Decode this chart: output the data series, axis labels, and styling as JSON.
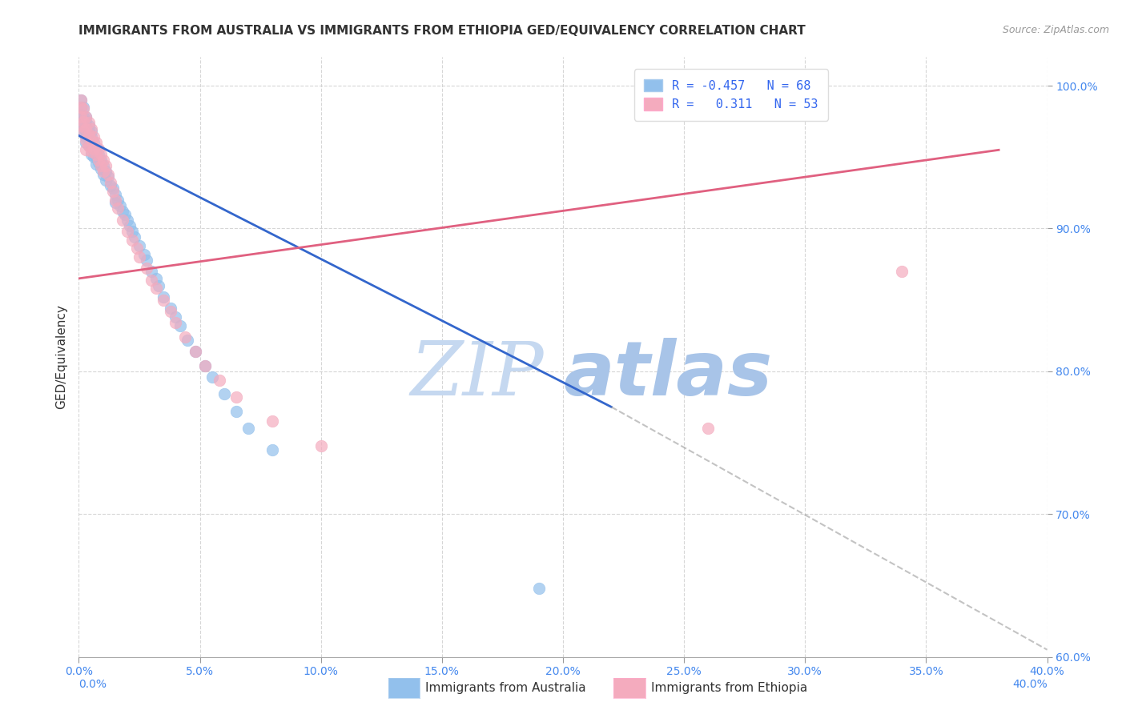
{
  "title": "IMMIGRANTS FROM AUSTRALIA VS IMMIGRANTS FROM ETHIOPIA GED/EQUIVALENCY CORRELATION CHART",
  "source": "Source: ZipAtlas.com",
  "ylabel": "GED/Equivalency",
  "xlim": [
    0.0,
    0.4
  ],
  "ylim": [
    0.6,
    1.02
  ],
  "xticks": [
    0.0,
    0.05,
    0.1,
    0.15,
    0.2,
    0.25,
    0.3,
    0.35,
    0.4
  ],
  "yticks": [
    0.6,
    0.7,
    0.8,
    0.9,
    1.0
  ],
  "ytick_labels": [
    "60.0%",
    "70.0%",
    "80.0%",
    "90.0%",
    "100.0%"
  ],
  "xtick_labels": [
    "0.0%",
    "5.0%",
    "10.0%",
    "15.0%",
    "20.0%",
    "25.0%",
    "30.0%",
    "35.0%",
    "40.0%"
  ],
  "r_australia": -0.457,
  "n_australia": 68,
  "r_ethiopia": 0.311,
  "n_ethiopia": 53,
  "color_australia": "#92C0EC",
  "color_ethiopia": "#F4ABBE",
  "line_color_australia": "#3366CC",
  "line_color_ethiopia": "#E06080",
  "legend_label_australia": "Immigrants from Australia",
  "legend_label_ethiopia": "Immigrants from Ethiopia",
  "aus_line_x": [
    0.0,
    0.22
  ],
  "aus_line_y": [
    0.965,
    0.775
  ],
  "eth_line_x": [
    0.0,
    0.38
  ],
  "eth_line_y": [
    0.865,
    0.955
  ],
  "dash_line_x": [
    0.22,
    0.4
  ],
  "dash_line_y": [
    0.775,
    0.605
  ],
  "scatter_australia_x": [
    0.001,
    0.001,
    0.001,
    0.001,
    0.002,
    0.002,
    0.002,
    0.002,
    0.003,
    0.003,
    0.003,
    0.003,
    0.003,
    0.003,
    0.004,
    0.004,
    0.004,
    0.004,
    0.005,
    0.005,
    0.005,
    0.005,
    0.006,
    0.006,
    0.006,
    0.007,
    0.007,
    0.007,
    0.008,
    0.008,
    0.009,
    0.009,
    0.01,
    0.01,
    0.011,
    0.011,
    0.012,
    0.013,
    0.014,
    0.015,
    0.015,
    0.016,
    0.017,
    0.018,
    0.019,
    0.02,
    0.021,
    0.022,
    0.023,
    0.025,
    0.027,
    0.028,
    0.03,
    0.032,
    0.033,
    0.035,
    0.038,
    0.04,
    0.042,
    0.045,
    0.048,
    0.052,
    0.055,
    0.06,
    0.065,
    0.07,
    0.08,
    0.19
  ],
  "scatter_australia_y": [
    0.99,
    0.985,
    0.98,
    0.975,
    0.985,
    0.978,
    0.972,
    0.968,
    0.978,
    0.975,
    0.972,
    0.968,
    0.964,
    0.96,
    0.972,
    0.968,
    0.964,
    0.958,
    0.968,
    0.964,
    0.958,
    0.952,
    0.96,
    0.955,
    0.95,
    0.956,
    0.95,
    0.945,
    0.952,
    0.946,
    0.948,
    0.942,
    0.944,
    0.938,
    0.94,
    0.934,
    0.936,
    0.93,
    0.928,
    0.924,
    0.918,
    0.92,
    0.916,
    0.912,
    0.91,
    0.906,
    0.902,
    0.898,
    0.894,
    0.888,
    0.882,
    0.878,
    0.87,
    0.865,
    0.86,
    0.852,
    0.844,
    0.838,
    0.832,
    0.822,
    0.814,
    0.804,
    0.796,
    0.784,
    0.772,
    0.76,
    0.745,
    0.648
  ],
  "scatter_ethiopia_x": [
    0.001,
    0.001,
    0.001,
    0.001,
    0.002,
    0.002,
    0.002,
    0.003,
    0.003,
    0.003,
    0.003,
    0.004,
    0.004,
    0.004,
    0.005,
    0.005,
    0.005,
    0.006,
    0.006,
    0.007,
    0.007,
    0.008,
    0.008,
    0.009,
    0.009,
    0.01,
    0.01,
    0.011,
    0.012,
    0.013,
    0.014,
    0.015,
    0.016,
    0.018,
    0.02,
    0.022,
    0.024,
    0.025,
    0.028,
    0.03,
    0.032,
    0.035,
    0.038,
    0.04,
    0.044,
    0.048,
    0.052,
    0.058,
    0.065,
    0.08,
    0.1,
    0.26,
    0.34
  ],
  "scatter_ethiopia_y": [
    0.99,
    0.985,
    0.978,
    0.972,
    0.984,
    0.975,
    0.968,
    0.978,
    0.97,
    0.962,
    0.955,
    0.974,
    0.966,
    0.958,
    0.97,
    0.962,
    0.954,
    0.964,
    0.956,
    0.96,
    0.952,
    0.956,
    0.948,
    0.952,
    0.944,
    0.948,
    0.94,
    0.944,
    0.938,
    0.932,
    0.926,
    0.92,
    0.914,
    0.906,
    0.898,
    0.892,
    0.886,
    0.88,
    0.872,
    0.864,
    0.858,
    0.85,
    0.842,
    0.834,
    0.824,
    0.814,
    0.804,
    0.794,
    0.782,
    0.765,
    0.748,
    0.76,
    0.87
  ],
  "watermark_zip": "ZIP",
  "watermark_atlas": "atlas",
  "watermark_color_zip": "#C5D8F0",
  "watermark_color_atlas": "#A8C4E8",
  "background_color": "#FFFFFF",
  "grid_color": "#CCCCCC"
}
